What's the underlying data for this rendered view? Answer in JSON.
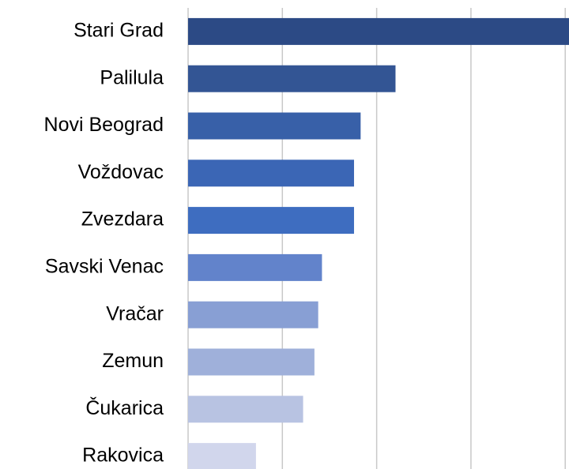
{
  "chart_data": {
    "type": "hbar",
    "categories": [
      "Stari Grad",
      "Palilula",
      "Novi Beograd",
      "Voždovac",
      "Zvezdara",
      "Savski Venac",
      "Vračar",
      "Zemun",
      "Čukarica",
      "Rakovica"
    ],
    "values": [
      4.04,
      2.2,
      1.83,
      1.76,
      1.76,
      1.42,
      1.38,
      1.34,
      1.22,
      0.72
    ],
    "colors": [
      "#2c4a85",
      "#335594",
      "#3860a8",
      "#3b66b5",
      "#3e6dc0",
      "#6283cb",
      "#889fd4",
      "#9fb0da",
      "#b8c3e2",
      "#d1d6ec"
    ],
    "xlim": [
      0,
      4.04
    ],
    "xticks": [
      0,
      1,
      2,
      3,
      4
    ],
    "grid": true
  }
}
